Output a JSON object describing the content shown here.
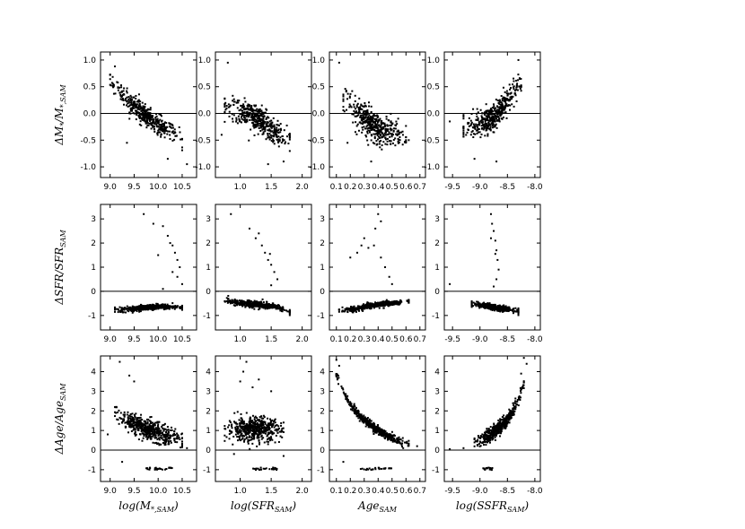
{
  "figure": {
    "row_labels": [
      {
        "main": "ΔM",
        "sub1": "*",
        "mid": "/M",
        "sub2": "*,SAM"
      },
      {
        "main": "ΔSFR/SFR",
        "sub1": "",
        "mid": "",
        "sub2": "SAM"
      },
      {
        "main": "ΔAge/Age",
        "sub1": "",
        "mid": "",
        "sub2": "SAM"
      }
    ],
    "col_labels": [
      {
        "pre": "log(M",
        "sub": "*,SAM",
        "post": ")"
      },
      {
        "pre": "log(SFR",
        "sub": "SAM",
        "post": ")"
      },
      {
        "pre": "Age",
        "sub": "SAM",
        "post": ""
      },
      {
        "pre": "log(SSFR",
        "sub": "SAM",
        "post": ")"
      }
    ]
  },
  "chart_data": {
    "type": "scatter",
    "grid": false,
    "columns": [
      {
        "xlim": [
          8.8,
          10.8
        ],
        "xticks": [
          "9.0",
          "9.5",
          "10.0",
          "10.5"
        ],
        "xtick_values": [
          9.0,
          9.5,
          10.0,
          10.5
        ]
      },
      {
        "xlim": [
          0.6,
          2.15
        ],
        "xticks": [
          "1.0",
          "1.5",
          "2.0"
        ],
        "xtick_values": [
          1.0,
          1.5,
          2.0
        ]
      },
      {
        "xlim": [
          0.05,
          0.74
        ],
        "xticks": [
          "0.1",
          "0.2",
          "0.3",
          "0.4",
          "0.5",
          "0.6",
          "0.7"
        ],
        "xtick_values": [
          0.1,
          0.2,
          0.3,
          0.4,
          0.5,
          0.6,
          0.7
        ]
      },
      {
        "xlim": [
          -9.65,
          -7.9
        ],
        "xticks": [
          "-9.5",
          "-9.0",
          "-8.5",
          "-8.0"
        ],
        "xtick_values": [
          -9.5,
          -9.0,
          -8.5,
          -8.0
        ]
      }
    ],
    "rows": [
      {
        "ylim": [
          -1.2,
          1.15
        ],
        "yticks": [
          "1.0",
          "0.5",
          "0.0",
          "-0.5",
          "-1.0"
        ],
        "ytick_values": [
          1.0,
          0.5,
          0.0,
          -0.5,
          -1.0
        ],
        "hline": 0
      },
      {
        "ylim": [
          -1.6,
          3.6
        ],
        "yticks": [
          "3",
          "2",
          "1",
          "0",
          "-1"
        ],
        "ytick_values": [
          3,
          2,
          1,
          0,
          -1
        ],
        "hline": 0
      },
      {
        "ylim": [
          -1.6,
          4.8
        ],
        "yticks": [
          "4",
          "3",
          "2",
          "1",
          "0",
          "-1"
        ],
        "ytick_values": [
          4,
          3,
          2,
          1,
          0,
          -1
        ],
        "hline": 0
      }
    ],
    "series": [
      {
        "row": 0,
        "col": 0,
        "trend": [
          [
            9.0,
            0.62
          ],
          [
            9.5,
            0.12
          ],
          [
            10.0,
            -0.22
          ],
          [
            10.5,
            -0.45
          ]
        ],
        "spread": 0.17,
        "n": 420,
        "outliers": [
          [
            9.1,
            0.88
          ],
          [
            9.35,
            -0.55
          ],
          [
            10.2,
            -0.85
          ],
          [
            10.6,
            -0.95
          ]
        ]
      },
      {
        "row": 0,
        "col": 1,
        "trend": [
          [
            0.75,
            0.15
          ],
          [
            1.0,
            0.05
          ],
          [
            1.3,
            -0.1
          ],
          [
            1.6,
            -0.38
          ],
          [
            1.8,
            -0.5
          ]
        ],
        "spread": 0.22,
        "n": 420,
        "outliers": [
          [
            0.8,
            0.95
          ],
          [
            0.7,
            -0.4
          ],
          [
            1.7,
            -0.9
          ],
          [
            1.45,
            -0.95
          ]
        ]
      },
      {
        "row": 0,
        "col": 2,
        "trend": [
          [
            0.15,
            0.3
          ],
          [
            0.25,
            0.0
          ],
          [
            0.35,
            -0.2
          ],
          [
            0.45,
            -0.35
          ],
          [
            0.6,
            -0.4
          ]
        ],
        "spread": 0.25,
        "n": 420,
        "outliers": [
          [
            0.12,
            0.95
          ],
          [
            0.18,
            -0.55
          ],
          [
            0.35,
            -0.9
          ],
          [
            0.62,
            -0.5
          ]
        ]
      },
      {
        "row": 0,
        "col": 3,
        "trend": [
          [
            -9.3,
            -0.25
          ],
          [
            -9.0,
            -0.2
          ],
          [
            -8.7,
            -0.05
          ],
          [
            -8.45,
            0.3
          ],
          [
            -8.25,
            0.55
          ]
        ],
        "spread": 0.22,
        "n": 420,
        "outliers": [
          [
            -9.55,
            -0.15
          ],
          [
            -8.3,
            1.0
          ],
          [
            -8.7,
            -0.9
          ],
          [
            -9.1,
            -0.85
          ]
        ]
      },
      {
        "row": 1,
        "col": 0,
        "trend": [
          [
            9.1,
            -0.78
          ],
          [
            9.6,
            -0.7
          ],
          [
            10.0,
            -0.62
          ],
          [
            10.5,
            -0.65
          ]
        ],
        "spread": 0.1,
        "n": 420,
        "outliers": [
          [
            9.7,
            3.2
          ],
          [
            9.9,
            2.8
          ],
          [
            10.1,
            2.7
          ],
          [
            10.2,
            2.3
          ],
          [
            10.3,
            1.9
          ],
          [
            10.35,
            1.6
          ],
          [
            10.4,
            1.3
          ],
          [
            10.45,
            1.0
          ],
          [
            10.3,
            0.8
          ],
          [
            10.0,
            1.5
          ],
          [
            10.5,
            0.3
          ],
          [
            10.1,
            0.1
          ],
          [
            10.25,
            2.0
          ],
          [
            10.4,
            0.6
          ]
        ]
      },
      {
        "row": 1,
        "col": 1,
        "trend": [
          [
            0.75,
            -0.4
          ],
          [
            1.0,
            -0.5
          ],
          [
            1.3,
            -0.55
          ],
          [
            1.6,
            -0.65
          ],
          [
            1.8,
            -0.82
          ]
        ],
        "spread": 0.12,
        "n": 420,
        "outliers": [
          [
            0.85,
            3.2
          ],
          [
            1.15,
            2.6
          ],
          [
            1.25,
            2.2
          ],
          [
            1.35,
            1.9
          ],
          [
            1.4,
            1.6
          ],
          [
            1.45,
            1.3
          ],
          [
            1.5,
            1.1
          ],
          [
            1.55,
            0.8
          ],
          [
            1.48,
            1.55
          ],
          [
            1.6,
            0.5
          ],
          [
            1.3,
            2.4
          ],
          [
            1.5,
            0.25
          ]
        ]
      },
      {
        "row": 1,
        "col": 2,
        "trend": [
          [
            0.12,
            -0.8
          ],
          [
            0.25,
            -0.72
          ],
          [
            0.4,
            -0.55
          ],
          [
            0.55,
            -0.45
          ],
          [
            0.62,
            -0.4
          ]
        ],
        "spread": 0.1,
        "n": 420,
        "outliers": [
          [
            0.4,
            3.2
          ],
          [
            0.42,
            2.9
          ],
          [
            0.38,
            2.6
          ],
          [
            0.3,
            2.2
          ],
          [
            0.33,
            1.8
          ],
          [
            0.25,
            1.6
          ],
          [
            0.2,
            1.4
          ],
          [
            0.37,
            1.9
          ],
          [
            0.42,
            1.4
          ],
          [
            0.45,
            1.0
          ],
          [
            0.48,
            0.6
          ],
          [
            0.5,
            0.3
          ],
          [
            0.28,
            1.9
          ]
        ]
      },
      {
        "row": 1,
        "col": 3,
        "trend": [
          [
            -9.15,
            -0.5
          ],
          [
            -8.9,
            -0.6
          ],
          [
            -8.6,
            -0.72
          ],
          [
            -8.3,
            -0.82
          ]
        ],
        "spread": 0.1,
        "n": 420,
        "outliers": [
          [
            -8.8,
            3.2
          ],
          [
            -8.78,
            2.8
          ],
          [
            -8.75,
            2.5
          ],
          [
            -8.72,
            2.1
          ],
          [
            -8.7,
            1.7
          ],
          [
            -8.68,
            1.3
          ],
          [
            -8.66,
            0.9
          ],
          [
            -8.7,
            0.5
          ],
          [
            -8.75,
            0.2
          ],
          [
            -9.55,
            0.3
          ],
          [
            -8.72,
            1.55
          ],
          [
            -8.8,
            2.2
          ]
        ]
      },
      {
        "row": 2,
        "col": 0,
        "trend": [
          [
            9.1,
            1.9
          ],
          [
            9.5,
            1.3
          ],
          [
            10.0,
            0.9
          ],
          [
            10.5,
            0.5
          ]
        ],
        "spread": 0.45,
        "n": 500,
        "outliers": [
          [
            9.2,
            4.5
          ],
          [
            9.4,
            3.8
          ],
          [
            9.5,
            3.5
          ],
          [
            8.95,
            0.8
          ],
          [
            10.6,
            0.1
          ],
          [
            9.25,
            -0.6
          ]
        ],
        "cluster": {
          "x": [
            9.75,
            10.3
          ],
          "y": -0.95,
          "n": 26
        }
      },
      {
        "row": 2,
        "col": 1,
        "trend": [
          [
            0.75,
            1.0
          ],
          [
            1.1,
            1.05
          ],
          [
            1.4,
            1.1
          ],
          [
            1.7,
            1.0
          ]
        ],
        "spread": 0.55,
        "n": 500,
        "outliers": [
          [
            1.1,
            4.5
          ],
          [
            1.0,
            3.5
          ],
          [
            1.2,
            3.2
          ],
          [
            1.5,
            3.0
          ],
          [
            0.9,
            -0.2
          ],
          [
            1.7,
            -0.3
          ],
          [
            1.05,
            4.0
          ],
          [
            1.3,
            3.6
          ]
        ],
        "cluster": {
          "x": [
            1.2,
            1.6
          ],
          "y": -0.95,
          "n": 26
        }
      },
      {
        "row": 2,
        "col": 2,
        "trend": [
          [
            0.1,
            3.8
          ],
          [
            0.15,
            3.0
          ],
          [
            0.2,
            2.3
          ],
          [
            0.3,
            1.5
          ],
          [
            0.4,
            1.0
          ],
          [
            0.5,
            0.6
          ],
          [
            0.62,
            0.3
          ]
        ],
        "spread": 0.18,
        "n": 480,
        "outliers": [
          [
            0.1,
            4.6
          ],
          [
            0.12,
            4.3
          ],
          [
            0.58,
            0.1
          ],
          [
            0.68,
            0.2
          ],
          [
            0.15,
            -0.6
          ]
        ],
        "cluster": {
          "x": [
            0.27,
            0.5
          ],
          "y": -0.95,
          "n": 26
        }
      },
      {
        "row": 2,
        "col": 3,
        "trend": [
          [
            -9.1,
            0.35
          ],
          [
            -8.8,
            0.8
          ],
          [
            -8.5,
            1.5
          ],
          [
            -8.3,
            2.5
          ],
          [
            -8.2,
            3.5
          ]
        ],
        "spread": 0.3,
        "n": 480,
        "outliers": [
          [
            -8.15,
            4.4
          ],
          [
            -8.25,
            3.9
          ],
          [
            -9.3,
            0.1
          ],
          [
            -9.55,
            0.05
          ],
          [
            -8.2,
            4.7
          ]
        ],
        "cluster": {
          "x": [
            -8.95,
            -8.75
          ],
          "y": -0.95,
          "n": 16
        }
      }
    ]
  }
}
